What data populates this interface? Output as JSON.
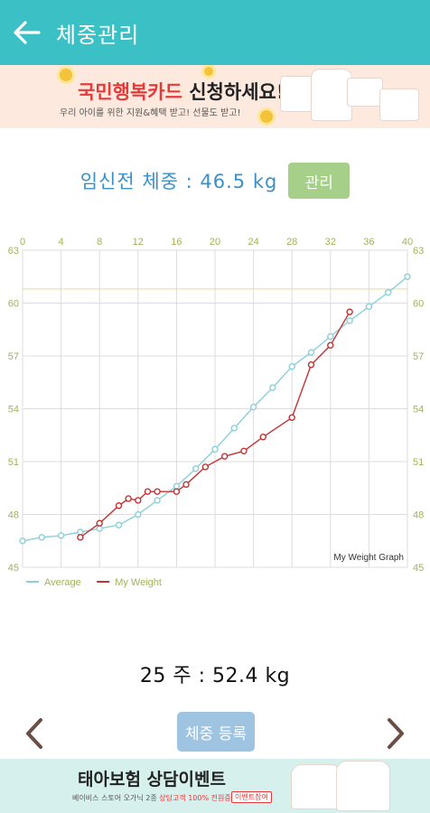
{
  "appbar": {
    "title": "체중관리"
  },
  "banner_top": {
    "headline_red": "국민행복카드",
    "headline_rest": " 신청하세요!",
    "subtext": "우리 아이를 위한 지원&혜택 받고! 선물도 받고!"
  },
  "pre_pregnancy": {
    "label": "임신전 체중 : 46.5 kg",
    "manage_button": "관리"
  },
  "current": {
    "text": "25 주 : 52.4 kg"
  },
  "register_button": "체중 등록",
  "banner_bottom": {
    "headline": "태아보험 상담이벤트",
    "subtext_prefix": "베이비스 스토어 오가닉 2종",
    "subtext_highlight": " 상담고객 100% 전원증정!",
    "tag": "이벤트참여"
  },
  "chart_data": {
    "type": "line",
    "watermark": "My Weight Graph",
    "xlim": [
      0,
      40
    ],
    "ylim": [
      45,
      63
    ],
    "x_ticks": [
      "0",
      "4",
      "8",
      "12",
      "16",
      "20",
      "24",
      "28",
      "32",
      "36",
      "40"
    ],
    "y_ticks": [
      "45",
      "48",
      "51",
      "54",
      "57",
      "60",
      "63"
    ],
    "reference_line": 60.8,
    "colors": {
      "average": "#8ccfdc",
      "my_weight": "#c23434",
      "axis_text": "#a3b25a",
      "grid": "#dddddd",
      "reference": "#e8e2a8"
    },
    "series": [
      {
        "name": "Average",
        "color": "#8ccfdc",
        "x": [
          0,
          2,
          4,
          6,
          8,
          10,
          12,
          14,
          16,
          18,
          20,
          22,
          24,
          26,
          28,
          30,
          32,
          34,
          36,
          38,
          40
        ],
        "y": [
          46.5,
          46.7,
          46.8,
          47.0,
          47.2,
          47.4,
          48.0,
          48.8,
          49.6,
          50.6,
          51.7,
          52.9,
          54.1,
          55.2,
          56.4,
          57.2,
          58.1,
          59.0,
          59.8,
          60.6,
          61.5
        ]
      },
      {
        "name": "My Weight",
        "color": "#c23434",
        "x": [
          6,
          8,
          10,
          11,
          12,
          13,
          14,
          16,
          17,
          19,
          21,
          23,
          25,
          28,
          30,
          32,
          34
        ],
        "y": [
          46.7,
          47.5,
          48.5,
          48.9,
          48.8,
          49.3,
          49.3,
          49.3,
          49.7,
          50.7,
          51.3,
          51.6,
          52.4,
          53.5,
          56.5,
          57.6,
          59.5
        ]
      }
    ]
  }
}
